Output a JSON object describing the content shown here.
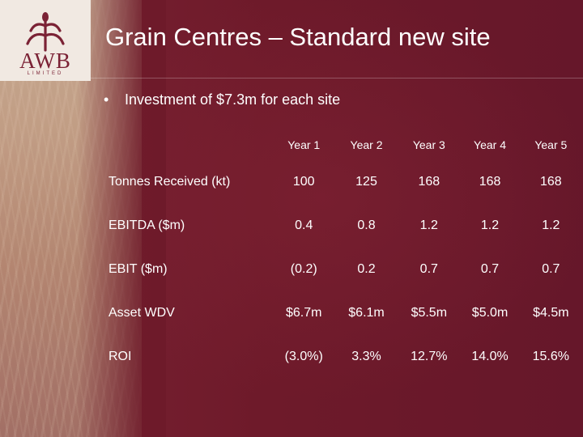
{
  "logo": {
    "name": "AWB",
    "sub": "LIMITED"
  },
  "colors": {
    "background": "#6e1a2a",
    "logo_bg": "#f1e9e2",
    "logo_mark": "#7b2235",
    "text": "#ffffff"
  },
  "slide": {
    "title": "Grain Centres – Standard new site",
    "bullet": "Investment of $7.3m for each site"
  },
  "table": {
    "columns": [
      "Year 1",
      "Year 2",
      "Year 3",
      "Year 4",
      "Year 5"
    ],
    "rows": [
      {
        "label": "Tonnes Received (kt)",
        "values": [
          "100",
          "125",
          "168",
          "168",
          "168"
        ]
      },
      {
        "label": "EBITDA ($m)",
        "values": [
          "0.4",
          "0.8",
          "1.2",
          "1.2",
          "1.2"
        ]
      },
      {
        "label": "EBIT ($m)",
        "values": [
          "(0.2)",
          "0.2",
          "0.7",
          "0.7",
          "0.7"
        ]
      },
      {
        "label": "Asset WDV",
        "values": [
          "$6.7m",
          "$6.1m",
          "$5.5m",
          "$5.0m",
          "$4.5m"
        ]
      },
      {
        "label": "ROI",
        "values": [
          "(3.0%)",
          "3.3%",
          "12.7%",
          "14.0%",
          "15.6%"
        ]
      }
    ]
  }
}
